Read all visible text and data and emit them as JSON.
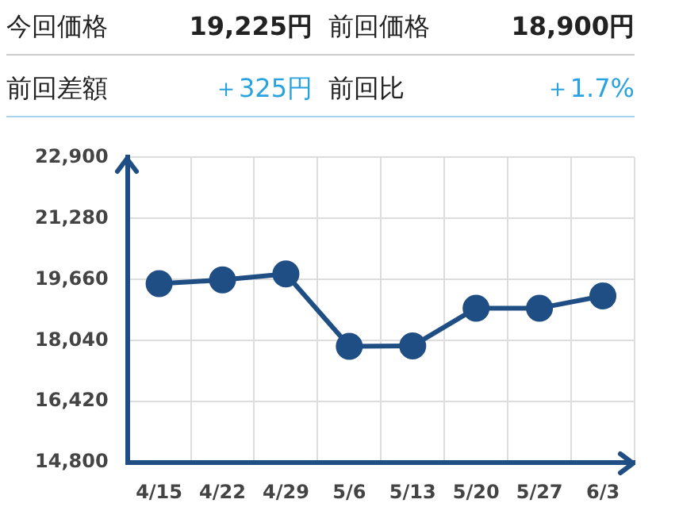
{
  "chart_data": {
    "type": "line",
    "annotations": [
      "今回価格",
      "19,225円",
      "前回価格",
      "18,900円",
      "前回差額",
      "＋325円",
      "前回比",
      "＋1.7%"
    ],
    "categories": [
      "4/15",
      "4/22",
      "4/29",
      "5/6",
      "5/13",
      "5/20",
      "5/27",
      "6/3"
    ],
    "series": [
      {
        "color": "#1f4e85",
        "values": [
          19550,
          19650,
          19810,
          17890,
          17900,
          18900,
          18900,
          19225
        ]
      }
    ],
    "ylim": [
      14800,
      22900
    ],
    "yticks": [
      {
        "value": 14800,
        "label": "14,800"
      },
      {
        "value": 16420,
        "label": "16,420"
      },
      {
        "value": 18040,
        "label": "18,040"
      },
      {
        "value": 19660,
        "label": "19,660"
      },
      {
        "value": 21280,
        "label": "21,280"
      },
      {
        "value": 22900,
        "label": "22,900"
      }
    ],
    "grid": true,
    "legend": false,
    "marker": "circle",
    "line_style": "solid"
  }
}
